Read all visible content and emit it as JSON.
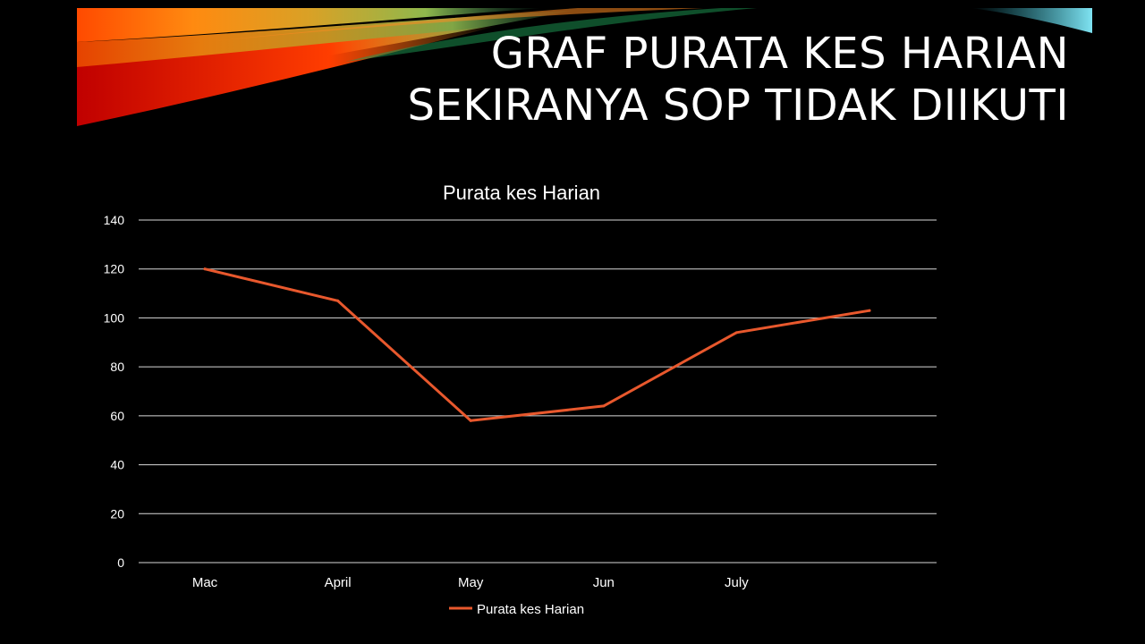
{
  "slide": {
    "title_line1": "Graf Purata Kes Harian",
    "title_line2": "Sekiranya SOP tidak diikuti"
  },
  "colors": {
    "background": "#000000",
    "text": "#ffffff",
    "gridline": "#d9d9d9",
    "series": "#e8582d"
  },
  "chart_data": {
    "type": "line",
    "title": "Purata kes Harian",
    "xlabel": "",
    "ylabel": "",
    "categories": [
      "Mac",
      "April",
      "May",
      "Jun",
      "July",
      ""
    ],
    "series": [
      {
        "name": "Purata kes Harian",
        "values": [
          120,
          107,
          58,
          64,
          94,
          103
        ]
      }
    ],
    "ylim": [
      0,
      140
    ],
    "yticks": [
      0,
      20,
      40,
      60,
      80,
      100,
      120,
      140
    ],
    "grid": true,
    "legend": "bottom"
  }
}
